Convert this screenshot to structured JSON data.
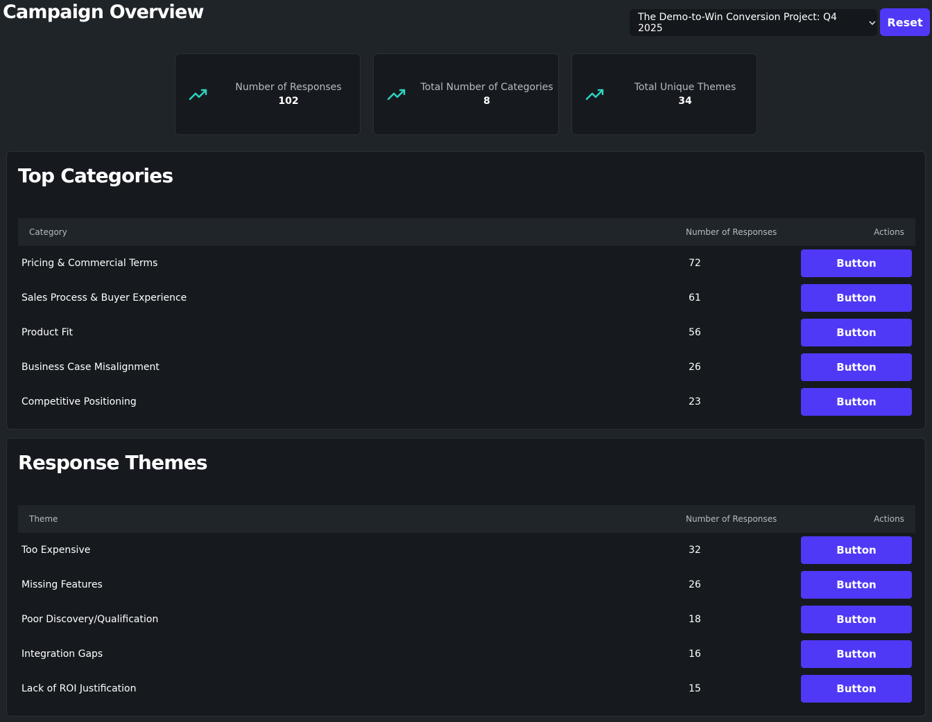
{
  "header": {
    "title": "Campaign Overview",
    "project": "The Demo-to-Win Conversion Project: Q4 2025",
    "reset": "Reset"
  },
  "stats": [
    {
      "label": "Number of Responses",
      "value": 102
    },
    {
      "label": "Total Number of Categories",
      "value": 8
    },
    {
      "label": "Total Unique Themes",
      "value": 34
    }
  ],
  "sections": [
    {
      "title": "Top Categories",
      "columns": [
        "Category",
        "Number of Responses",
        "Actions"
      ],
      "rows": [
        [
          "Pricing & Commercial Terms",
          72,
          "Button"
        ],
        [
          "Sales Process & Buyer Experience",
          61,
          "Button"
        ],
        [
          "Product Fit",
          56,
          "Button"
        ],
        [
          "Business Case Misalignment",
          26,
          "Button"
        ],
        [
          "Competitive Positioning",
          23,
          "Button"
        ]
      ]
    },
    {
      "title": "Response Themes",
      "columns": [
        "Theme",
        "Number of Responses",
        "Actions"
      ],
      "rows": [
        [
          "Too Expensive",
          32,
          "Button"
        ],
        [
          "Missing Features",
          26,
          "Button"
        ],
        [
          "Poor Discovery/Qualification",
          18,
          "Button"
        ],
        [
          "Integration Gaps",
          16,
          "Button"
        ],
        [
          "Lack of ROI Justification",
          15,
          "Button"
        ]
      ]
    }
  ]
}
